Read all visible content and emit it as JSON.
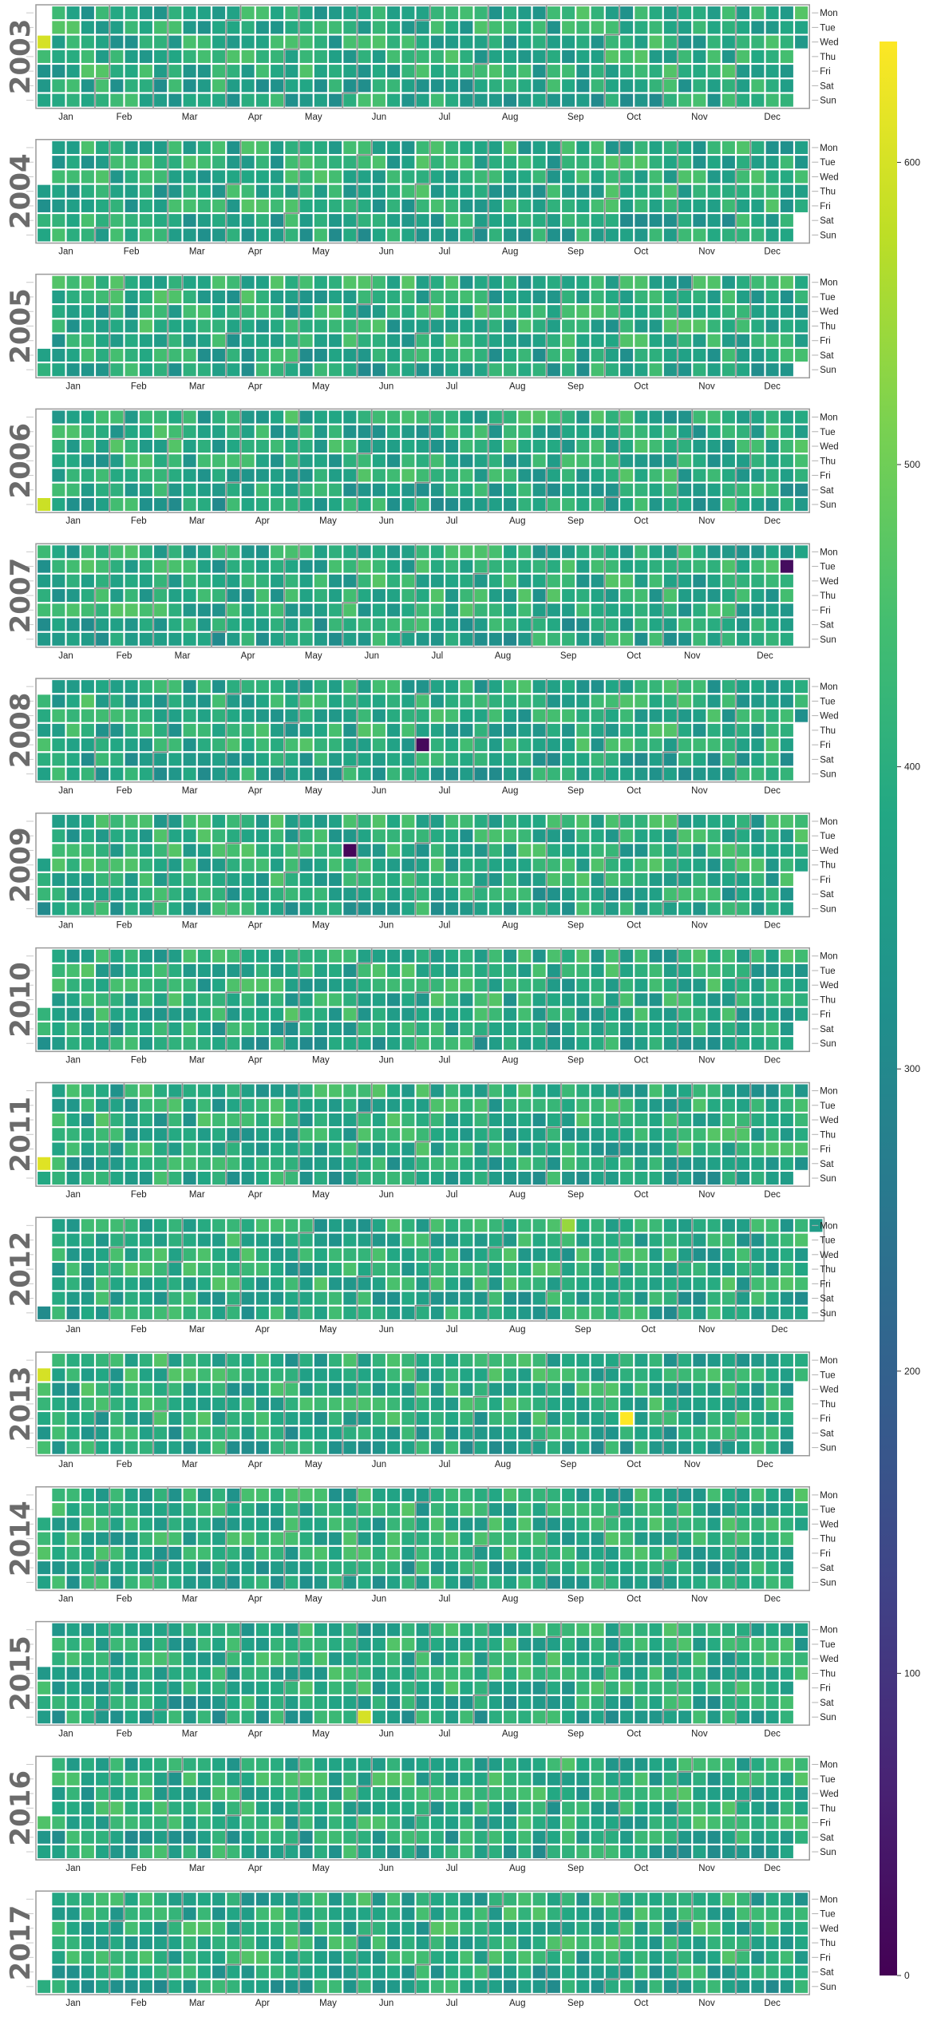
{
  "chart_data": {
    "type": "heatmap",
    "subtype": "calendar-heatmap",
    "years": [
      2003,
      2004,
      2005,
      2006,
      2007,
      2008,
      2009,
      2010,
      2011,
      2012,
      2013,
      2014,
      2015,
      2016,
      2017
    ],
    "weekday_labels": [
      "Mon",
      "Tue",
      "Wed",
      "Thu",
      "Fri",
      "Sat",
      "Sun"
    ],
    "month_labels": [
      "Jan",
      "Feb",
      "Mar",
      "Apr",
      "May",
      "Jun",
      "Jul",
      "Aug",
      "Sep",
      "Oct",
      "Nov",
      "Dec"
    ],
    "value_range": [
      0,
      640
    ],
    "colorbar": {
      "colormap": "viridis",
      "ticks": [
        0,
        100,
        200,
        300,
        400,
        500,
        600
      ],
      "placement": "right"
    },
    "notable_days": [
      {
        "date": "2003-01-01",
        "value": 600
      },
      {
        "date": "2006-01-01",
        "value": 590
      },
      {
        "date": "2007-12-25",
        "value": 20
      },
      {
        "date": "2008-07-04",
        "value": 15
      },
      {
        "date": "2009-05-27",
        "value": 10
      },
      {
        "date": "2011-01-01",
        "value": 610
      },
      {
        "date": "2012-09-03",
        "value": 540
      },
      {
        "date": "2013-01-01",
        "value": 600
      },
      {
        "date": "2013-10-11",
        "value": 640
      },
      {
        "date": "2015-06-07",
        "value": 600
      }
    ],
    "typical_daily_value_range": [
      320,
      470
    ]
  }
}
